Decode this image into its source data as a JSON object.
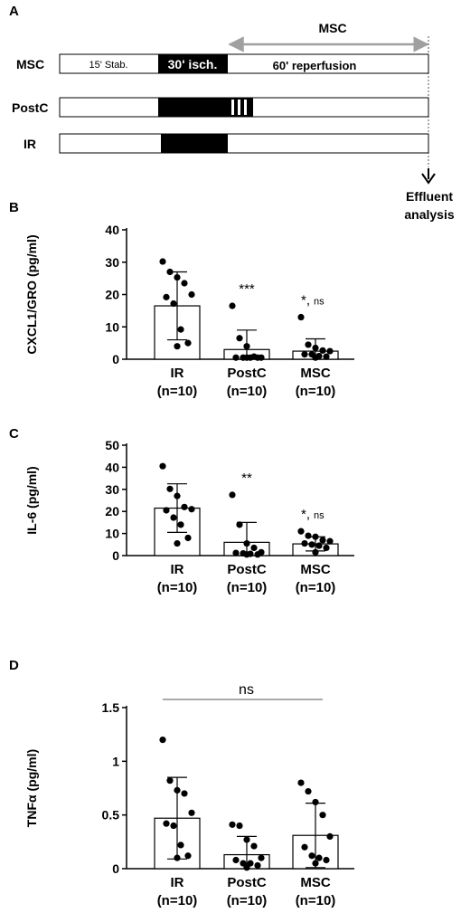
{
  "protocol": {
    "panel": "A",
    "msc_arrow_label": "MSC",
    "effluent_label_line1": "Effluent",
    "effluent_label_line2": "analysis",
    "rows": [
      {
        "name": "MSC",
        "stab_label": "15' Stab.",
        "isch_label": "30' isch.",
        "reperf_label": "60' reperfusion",
        "postc_stripes": false
      },
      {
        "name": "PostC",
        "stab_label": "",
        "isch_label": "",
        "reperf_label": "",
        "postc_stripes": true
      },
      {
        "name": "IR",
        "stab_label": "",
        "isch_label": "",
        "reperf_label": "",
        "postc_stripes": false
      }
    ]
  },
  "chart_data": [
    {
      "panel": "B",
      "type": "bar",
      "categories": [
        "IR",
        "PostC",
        "MSC"
      ],
      "category_sublabels": [
        "(n=10)",
        "(n=10)",
        "(n=10)"
      ],
      "ylabel": "CXCL1/GRO (pg/ml)",
      "ylim": [
        0,
        40
      ],
      "yticks": [
        0,
        10,
        20,
        30,
        40
      ],
      "tick_labels": [
        "0",
        "10",
        "20",
        "30",
        "40"
      ],
      "values": [
        16.5,
        3.0,
        2.5
      ],
      "error": [
        10.5,
        6.0,
        3.8
      ],
      "points": [
        [
          30.2,
          27.0,
          25.3,
          23.5,
          20.0,
          19.2,
          17.2,
          9.2,
          5.0,
          4.0
        ],
        [
          16.5,
          6.5,
          4.0,
          0.8,
          0.5,
          0.5,
          0.5,
          0.5,
          0.5,
          0.5
        ],
        [
          13.0,
          4.5,
          3.5,
          2.7,
          2.5,
          1.5,
          1.5,
          1.0,
          0.8,
          0.5
        ]
      ],
      "annotations": [
        {
          "category": "PostC",
          "text": "***",
          "ns": ""
        },
        {
          "category": "MSC",
          "text": "*,",
          "ns": "ns"
        }
      ],
      "bracket": null
    },
    {
      "panel": "C",
      "type": "bar",
      "categories": [
        "IR",
        "PostC",
        "MSC"
      ],
      "category_sublabels": [
        "(n=10)",
        "(n=10)",
        "(n=10)"
      ],
      "ylabel": "IL-6 (pg/ml)",
      "ylim": [
        0,
        50
      ],
      "yticks": [
        0,
        10,
        20,
        30,
        40,
        50
      ],
      "tick_labels": [
        "0",
        "10",
        "20",
        "30",
        "40",
        "50"
      ],
      "values": [
        21.5,
        6.0,
        5.3
      ],
      "error": [
        11.0,
        9.0,
        3.2
      ],
      "points": [
        [
          40.5,
          30.2,
          27.0,
          22.0,
          21.0,
          20.5,
          17.2,
          14.0,
          8.0,
          5.5
        ],
        [
          27.5,
          14.0,
          5.5,
          3.5,
          1.5,
          1.2,
          1.0,
          0.8,
          0.5,
          0.5
        ],
        [
          11.0,
          9.0,
          8.5,
          7.0,
          6.5,
          5.5,
          5.0,
          4.5,
          3.5,
          1.5
        ]
      ],
      "annotations": [
        {
          "category": "PostC",
          "text": "**",
          "ns": ""
        },
        {
          "category": "MSC",
          "text": "*,",
          "ns": "ns"
        }
      ],
      "bracket": null
    },
    {
      "panel": "D",
      "type": "bar",
      "categories": [
        "IR",
        "PostC",
        "MSC"
      ],
      "category_sublabels": [
        "(n=10)",
        "(n=10)",
        "(n=10)"
      ],
      "ylabel": "TNFα (pg/ml)",
      "ylim": [
        0,
        1.5
      ],
      "yticks": [
        0,
        0.5,
        1,
        1.5
      ],
      "tick_labels": [
        "0",
        "0.5",
        "1",
        "1.5"
      ],
      "values": [
        0.47,
        0.13,
        0.31
      ],
      "error": [
        0.38,
        0.17,
        0.3
      ],
      "points": [
        [
          1.2,
          0.82,
          0.73,
          0.7,
          0.52,
          0.42,
          0.4,
          0.22,
          0.12,
          0.1
        ],
        [
          0.41,
          0.4,
          0.27,
          0.21,
          0.1,
          0.08,
          0.05,
          0.05,
          0.03,
          0.01
        ],
        [
          0.8,
          0.72,
          0.62,
          0.5,
          0.3,
          0.2,
          0.12,
          0.1,
          0.08,
          0.05
        ]
      ],
      "annotations": [],
      "bracket": {
        "from": "IR",
        "to": "MSC",
        "text": "ns"
      }
    }
  ]
}
